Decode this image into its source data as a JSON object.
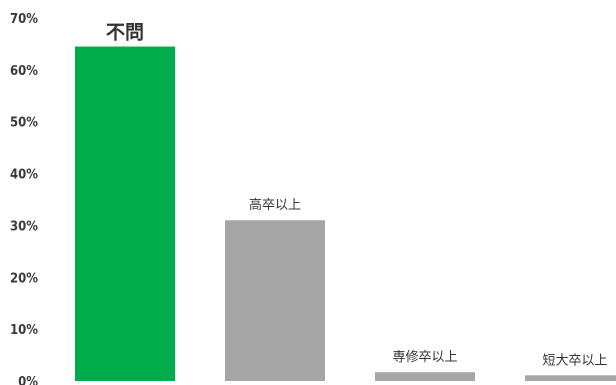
{
  "chart_data": {
    "type": "bar",
    "categories": [
      "不問",
      "高卒以上",
      "専修卒以上",
      "短大卒以上"
    ],
    "values": [
      64.5,
      31,
      1.7,
      1.1
    ],
    "ylim": [
      0,
      70
    ],
    "y_ticks": [
      0,
      10,
      20,
      30,
      40,
      50,
      60,
      70
    ],
    "y_tick_labels": [
      "0%",
      "10%",
      "20%",
      "30%",
      "40%",
      "50%",
      "60%",
      "70%"
    ],
    "xlabel": "",
    "ylabel": "",
    "grid": false,
    "highlight_index": 0,
    "colors": {
      "highlight": "#00ad4d",
      "bar": "#a6a6a6",
      "highlight_label": "#00ad4d",
      "label": "#333333",
      "tick": "#3a3a3a"
    }
  }
}
